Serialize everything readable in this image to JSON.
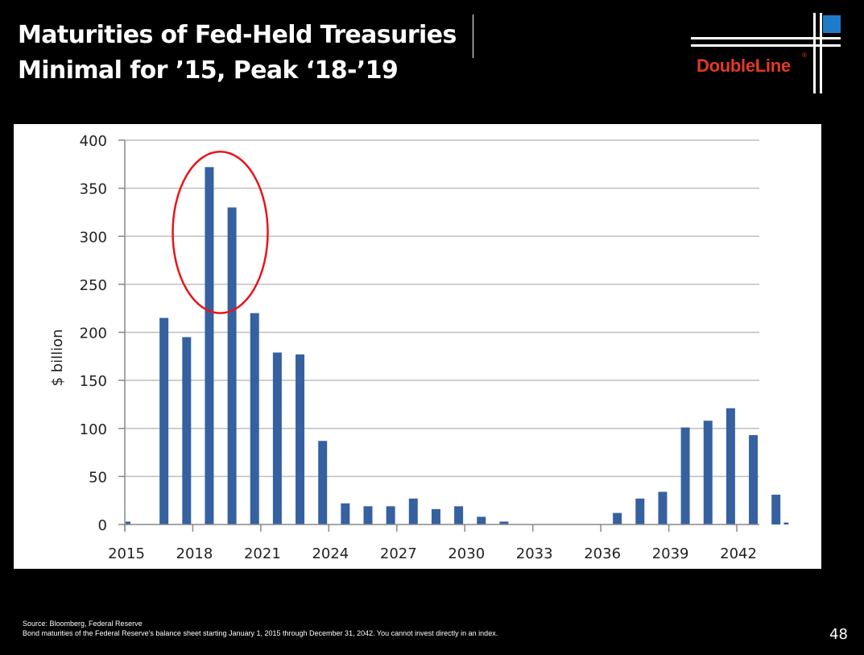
{
  "slide": {
    "title_line1": "Maturities of Fed-Held Treasuries",
    "title_line2": "Minimal for ’15, Peak ‘18-’19",
    "logo_text": "DoubleLine",
    "logo_reg": "®",
    "footer_source": "Source: Bloomberg, Federal Reserve",
    "footer_note": "Bond maturities of the Federal Reserve’s balance sheet starting January 1, 2015 through December 31, 2042. You cannot invest directly in an index.",
    "page_number": "48"
  },
  "colors": {
    "background": "#000000",
    "bar": "#3561a0",
    "highlight_ellipse": "#e8141b",
    "logo_red": "#e33a27",
    "logo_blue": "#1f7bc8",
    "gridline": "#bfbfbf"
  },
  "chart_data": {
    "type": "bar",
    "title": "",
    "xlabel": "",
    "ylabel": "$ billion",
    "ylim": [
      0,
      400
    ],
    "yticks": [
      0,
      50,
      100,
      150,
      200,
      250,
      300,
      350,
      400
    ],
    "xtick_labels": [
      "2015",
      "2018",
      "2021",
      "2024",
      "2027",
      "2030",
      "2033",
      "2036",
      "2039",
      "2042"
    ],
    "grid": true,
    "legend": "none",
    "categories": [
      "2015",
      "2016",
      "2017",
      "2018",
      "2019",
      "2020",
      "2021",
      "2022",
      "2023",
      "2024",
      "2025",
      "2026",
      "2027",
      "2028",
      "2029",
      "2030",
      "2031",
      "2032",
      "2033",
      "2034",
      "2035",
      "2036",
      "2037",
      "2038",
      "2039",
      "2040",
      "2041",
      "2042",
      "2043",
      "2044"
    ],
    "values": [
      3,
      215,
      195,
      372,
      330,
      220,
      179,
      177,
      87,
      22,
      19,
      19,
      27,
      16,
      19,
      8,
      3,
      0,
      0,
      0,
      0,
      12,
      27,
      34,
      101,
      108,
      121,
      93,
      31,
      2
    ],
    "annotations": [
      {
        "type": "ellipse",
        "label": "highlight",
        "covers_categories": [
          "2018",
          "2019"
        ],
        "y_range": [
          220,
          388
        ]
      }
    ]
  }
}
